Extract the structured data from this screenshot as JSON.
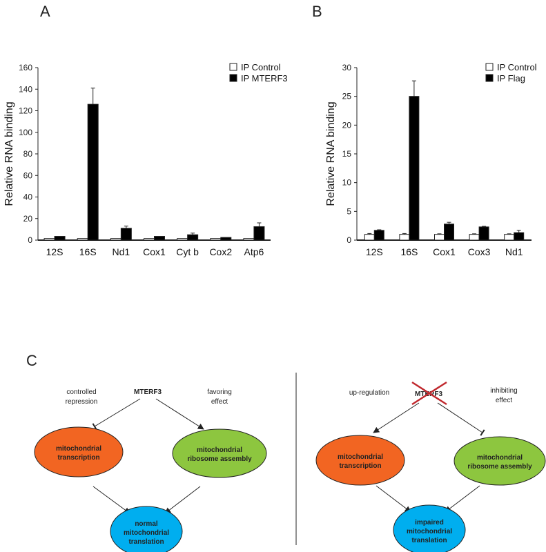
{
  "panels": {
    "a": "A",
    "b": "B",
    "c": "C"
  },
  "chart_data": [
    {
      "type": "bar",
      "panel": "A",
      "ylabel": "Relative RNA binding",
      "ylim": [
        0,
        160
      ],
      "yticks": [
        0,
        20,
        40,
        60,
        80,
        100,
        120,
        140,
        160
      ],
      "categories": [
        "12S",
        "16S",
        "Nd1",
        "Cox1",
        "Cyt b",
        "Cox2",
        "Atp6"
      ],
      "series": [
        {
          "name": "IP Control",
          "color": "#ffffff",
          "values": [
            1.5,
            1.5,
            1.5,
            1.5,
            1.5,
            1.5,
            1.5
          ],
          "errors": [
            0,
            0,
            0,
            0,
            0,
            0,
            0
          ]
        },
        {
          "name": "IP MTERF3",
          "color": "#000000",
          "values": [
            3.5,
            126,
            11,
            3.5,
            5,
            2.5,
            12.5
          ],
          "errors": [
            0,
            15,
            2,
            0,
            1.5,
            0,
            3.5
          ]
        }
      ],
      "legend": "top-right",
      "grid": false
    },
    {
      "type": "bar",
      "panel": "B",
      "ylabel": "Relative RNA binding",
      "ylim": [
        0,
        30
      ],
      "yticks": [
        0,
        5,
        10,
        15,
        20,
        25,
        30
      ],
      "categories": [
        "12S",
        "16S",
        "Cox1",
        "Cox3",
        "Nd1"
      ],
      "series": [
        {
          "name": "IP Control",
          "color": "#ffffff",
          "values": [
            1,
            1,
            1,
            1,
            1
          ],
          "errors": [
            0.15,
            0.15,
            0.1,
            0.1,
            0.1
          ]
        },
        {
          "name": "IP Flag",
          "color": "#000000",
          "values": [
            1.7,
            25,
            2.8,
            2.3,
            1.3
          ],
          "errors": [
            0.1,
            2.7,
            0.3,
            0.1,
            0.4
          ]
        }
      ],
      "legend": "top-right",
      "grid": false
    }
  ],
  "diagram": {
    "left": {
      "mterf3": "MTERF3",
      "left_edge_label_1": "controlled",
      "left_edge_label_2": "repression",
      "right_edge_label_1": "favoring",
      "right_edge_label_2": "effect",
      "transcription_1": "mitochondrial",
      "transcription_2": "transcription",
      "ribosome_1": "mitochondrial",
      "ribosome_2": "ribosome assembly",
      "translation_1": "normal",
      "translation_2": "mitochondrial",
      "translation_3": "translation"
    },
    "right": {
      "mterf3": "MTERF3",
      "left_edge_label": "up-regulation",
      "right_edge_label_1": "inhibiting",
      "right_edge_label_2": "effect",
      "transcription_1": "mitochondrial",
      "transcription_2": "transcription",
      "ribosome_1": "mitochondrial",
      "ribosome_2": "ribosome assembly",
      "translation_1": "impaired",
      "translation_2": "mitochondrial",
      "translation_3": "translation"
    },
    "colors": {
      "transcription": "#f26522",
      "ribosome": "#8dc63f",
      "translation": "#00aeef",
      "cross": "#c0282d"
    }
  }
}
